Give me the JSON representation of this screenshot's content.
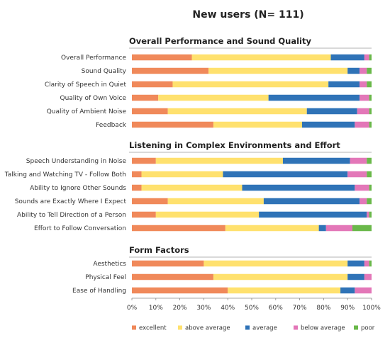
{
  "title": "New users (N= 111)",
  "chart_data": {
    "type": "bar",
    "orientation": "horizontal",
    "stacked": true,
    "unit": "%",
    "xlim": [
      0,
      100
    ],
    "x_ticks": [
      "0%",
      "10%",
      "20%",
      "30%",
      "40%",
      "50%",
      "60%",
      "70%",
      "80%",
      "90%",
      "100%"
    ],
    "categories_legend": [
      {
        "name": "excellent",
        "color": "#f0895a"
      },
      {
        "name": "above average",
        "color": "#ffe16e"
      },
      {
        "name": "average",
        "color": "#2f73b7"
      },
      {
        "name": "below average",
        "color": "#e377b8"
      },
      {
        "name": "poor",
        "color": "#6ab84a"
      }
    ],
    "legend_position": "bottom",
    "groups": [
      {
        "title": "Overall Performance and Sound Quality",
        "rows": [
          {
            "label": "Overall Performance",
            "values": [
              25,
              58,
              14,
              2,
              1
            ]
          },
          {
            "label": "Sound Quality",
            "values": [
              32,
              58,
              5,
              3,
              2
            ]
          },
          {
            "label": "Clarity of Speech in Quiet",
            "values": [
              17,
              65,
              13,
              3,
              2
            ]
          },
          {
            "label": "Quality of Own Voice",
            "values": [
              11,
              46,
              38,
              4,
              1
            ]
          },
          {
            "label": "Quality of Ambient Noise",
            "values": [
              15,
              58,
              21,
              5,
              1
            ]
          },
          {
            "label": "Feedback",
            "values": [
              34,
              37,
              22,
              6,
              1
            ]
          }
        ]
      },
      {
        "title": "Listening in Complex Environments and Effort",
        "rows": [
          {
            "label": "Speech Understanding in Noise",
            "values": [
              10,
              53,
              28,
              7,
              2
            ]
          },
          {
            "label": "Talking and Watching TV - Follow Both",
            "values": [
              4,
              34,
              52,
              8,
              2
            ]
          },
          {
            "label": "Ability to Ignore Other Sounds",
            "values": [
              4,
              42,
              47,
              6,
              1
            ]
          },
          {
            "label": "Sounds are Exactly Where I Expect",
            "values": [
              15,
              40,
              40,
              3,
              2
            ]
          },
          {
            "label": "Ability to Tell Direction of a Person",
            "values": [
              10,
              43,
              45,
              1,
              1
            ]
          },
          {
            "label": "Effort to Follow Conversation",
            "values": [
              39,
              39,
              3,
              11,
              8
            ]
          }
        ]
      },
      {
        "title": "Form Factors",
        "rows": [
          {
            "label": "Aesthetics",
            "values": [
              30,
              60,
              7,
              2,
              1
            ]
          },
          {
            "label": "Physical Feel",
            "values": [
              34,
              56,
              7,
              3,
              0
            ]
          },
          {
            "label": "Ease of Handling",
            "values": [
              40,
              47,
              6,
              7,
              0
            ]
          }
        ]
      }
    ]
  }
}
